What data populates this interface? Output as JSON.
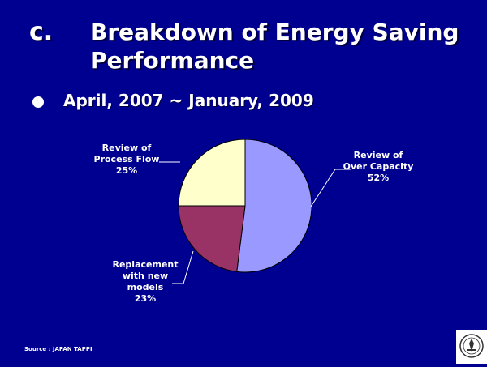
{
  "header": {
    "letter": "c.",
    "title": "Breakdown of Energy Saving Performance"
  },
  "bullet": {
    "text": "April, 2007 ~ January, 2009"
  },
  "chart_data": {
    "type": "pie",
    "title": "",
    "slices": [
      {
        "label_lines": [
          "Review of",
          "Over Capacity",
          "52%"
        ],
        "value": 52,
        "color": "#9999ff"
      },
      {
        "label_lines": [
          "Replacement",
          "with new",
          "models",
          "23%"
        ],
        "value": 23,
        "color": "#993366"
      },
      {
        "label_lines": [
          "Review of",
          "Process Flow",
          "25%"
        ],
        "value": 25,
        "color": "#ffffcc"
      }
    ]
  },
  "footer": {
    "source": "Source : JAPAN TAPPI"
  }
}
